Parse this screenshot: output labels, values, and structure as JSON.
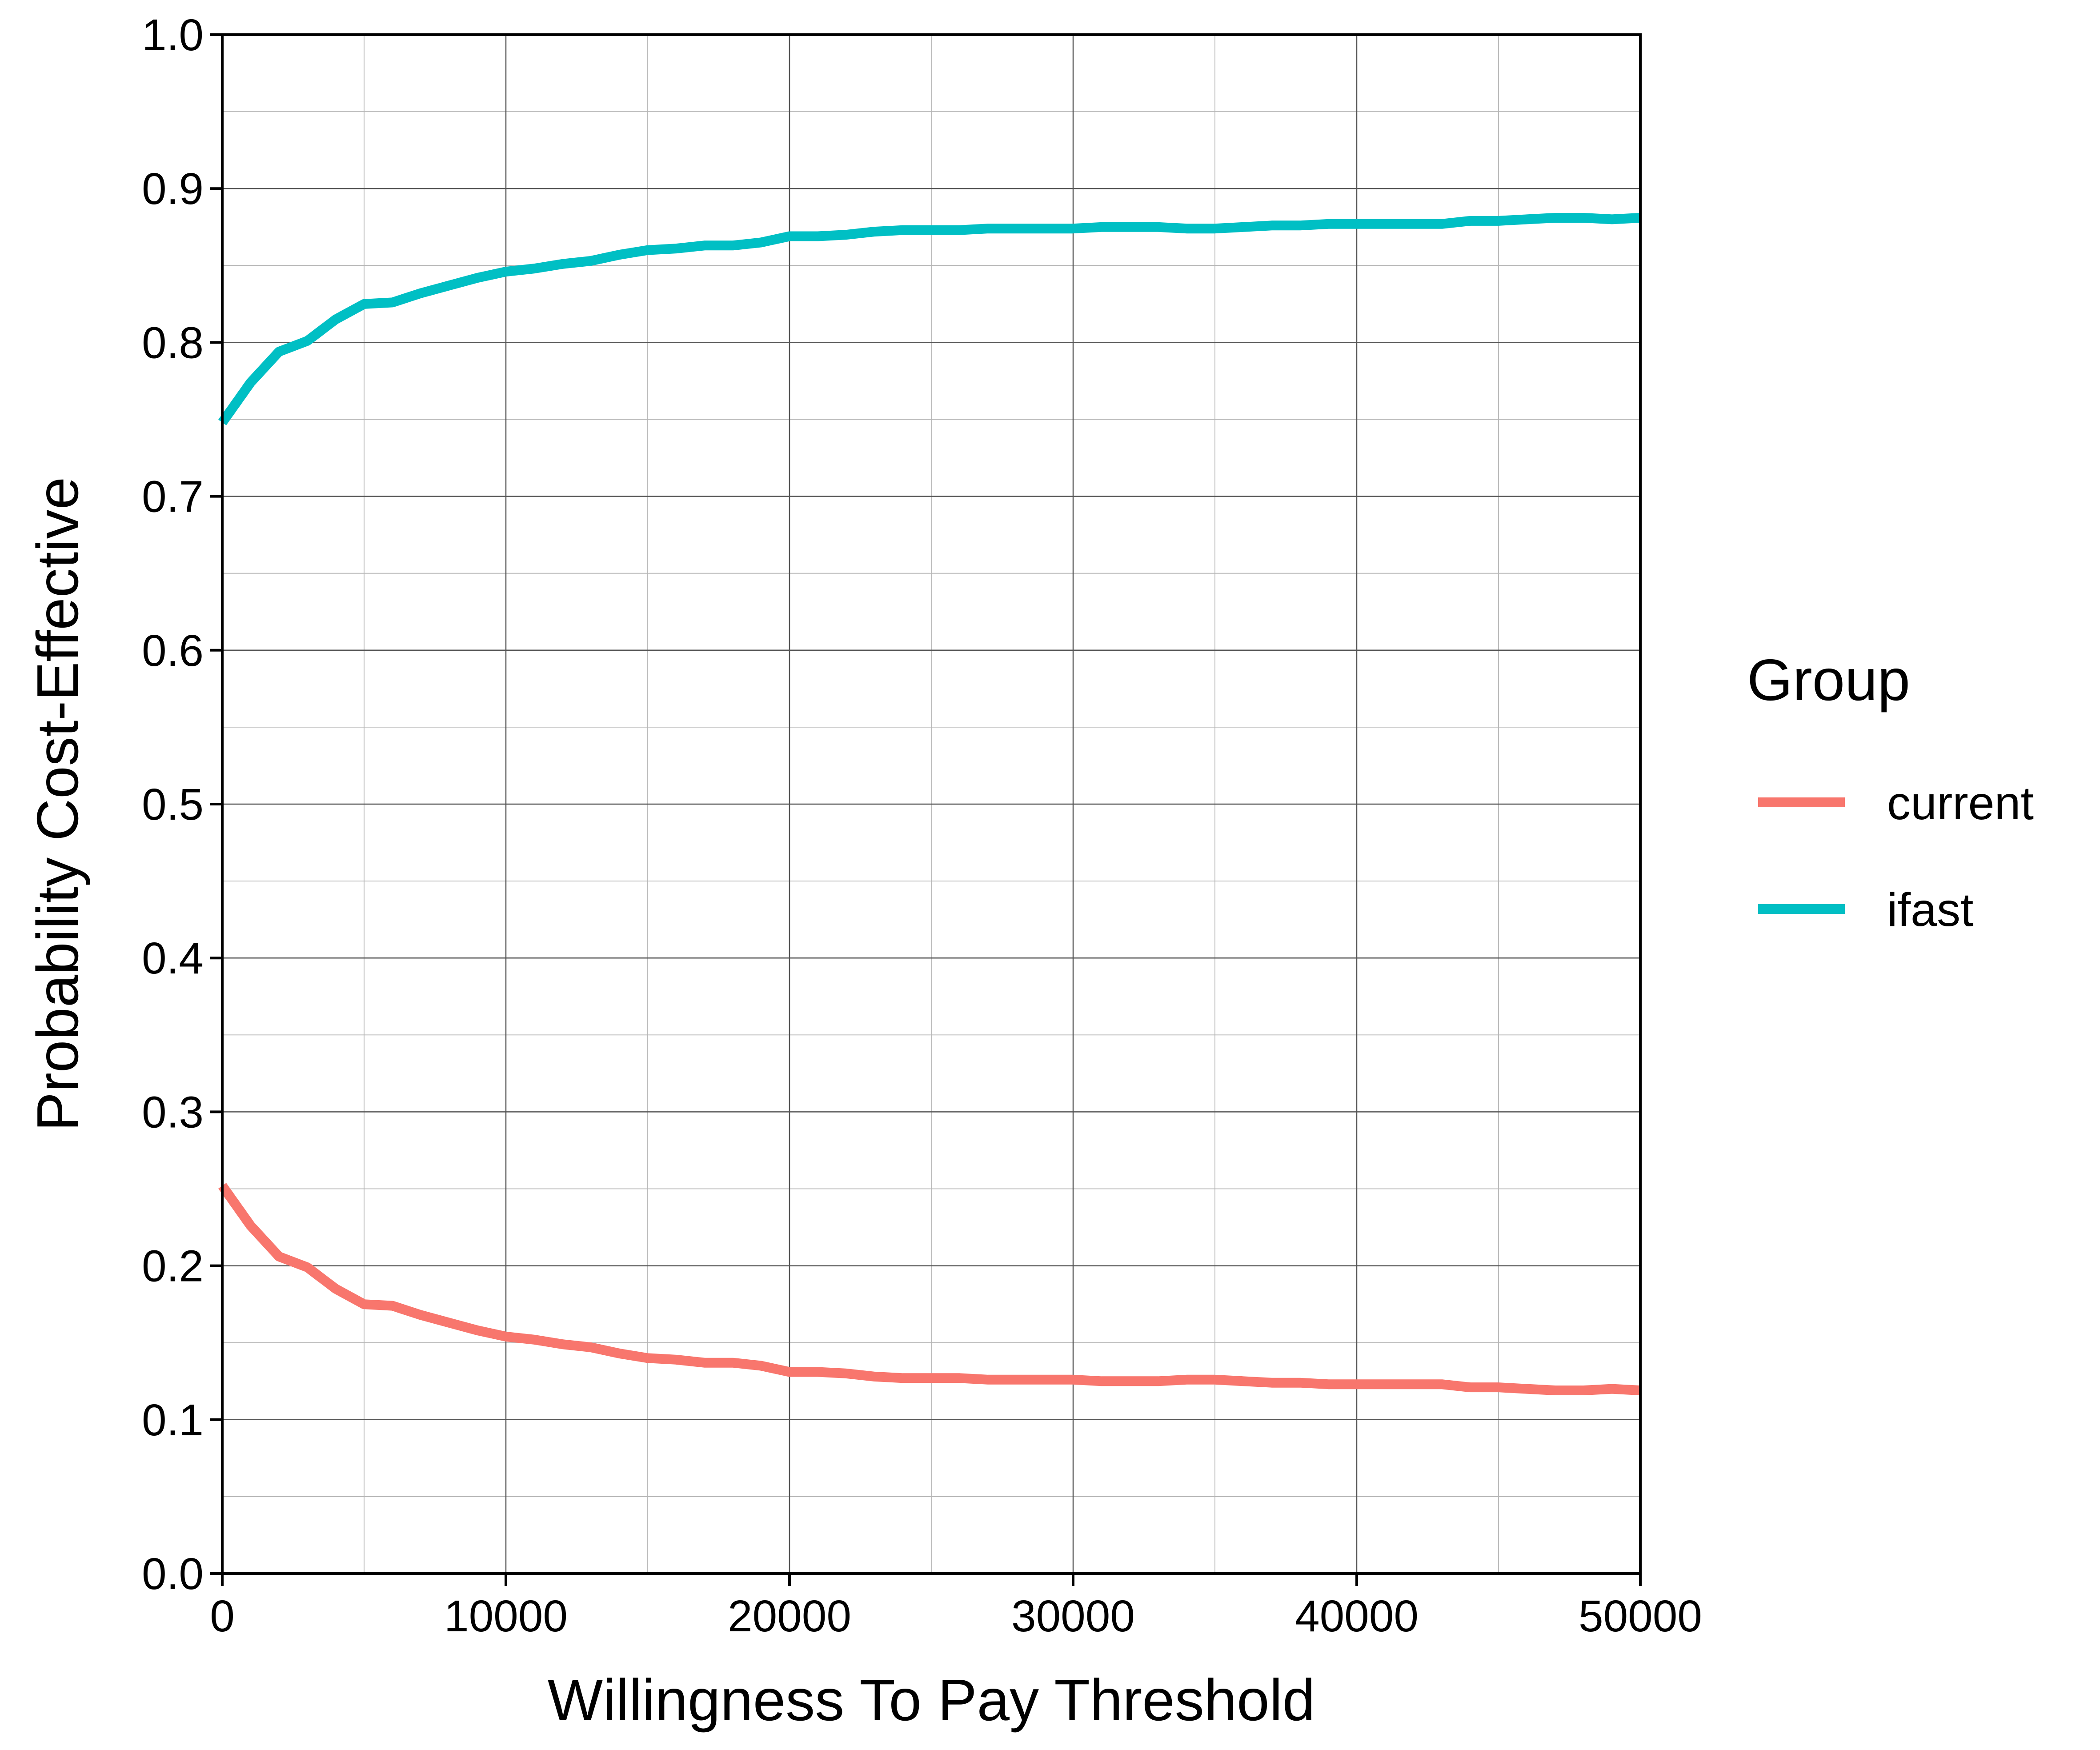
{
  "chart_data": {
    "type": "line",
    "xlabel": "Willingness To Pay Threshold",
    "ylabel": "Probability Cost-Effective",
    "xlim": [
      0,
      50000
    ],
    "ylim": [
      0,
      1
    ],
    "x_ticks": [
      "0",
      "10000",
      "20000",
      "30000",
      "40000",
      "50000"
    ],
    "y_ticks": [
      "0.0",
      "0.1",
      "0.2",
      "0.3",
      "0.4",
      "0.5",
      "0.6",
      "0.7",
      "0.8",
      "0.9",
      "1.0"
    ],
    "grid": true,
    "legend": {
      "title": "Group",
      "placement": "right"
    },
    "x": [
      0,
      1000,
      2000,
      3000,
      4000,
      5000,
      6000,
      7000,
      8000,
      9000,
      10000,
      11000,
      12000,
      13000,
      14000,
      15000,
      16000,
      17000,
      18000,
      19000,
      20000,
      21000,
      22000,
      23000,
      24000,
      25000,
      26000,
      27000,
      28000,
      29000,
      30000,
      31000,
      32000,
      33000,
      34000,
      35000,
      36000,
      37000,
      38000,
      39000,
      40000,
      41000,
      42000,
      43000,
      44000,
      45000,
      46000,
      47000,
      48000,
      49000,
      50000
    ],
    "series": [
      {
        "name": "current",
        "color": "#F8766D",
        "values": [
          0.252,
          0.226,
          0.206,
          0.199,
          0.185,
          0.175,
          0.174,
          0.168,
          0.163,
          0.158,
          0.154,
          0.152,
          0.149,
          0.147,
          0.143,
          0.14,
          0.139,
          0.137,
          0.137,
          0.135,
          0.131,
          0.131,
          0.13,
          0.128,
          0.127,
          0.127,
          0.127,
          0.126,
          0.126,
          0.126,
          0.126,
          0.125,
          0.125,
          0.125,
          0.126,
          0.126,
          0.125,
          0.124,
          0.124,
          0.123,
          0.123,
          0.123,
          0.123,
          0.123,
          0.121,
          0.121,
          0.12,
          0.119,
          0.119,
          0.12,
          0.119
        ]
      },
      {
        "name": "ifast",
        "color": "#00BFC4",
        "values": [
          0.748,
          0.774,
          0.794,
          0.801,
          0.815,
          0.825,
          0.826,
          0.832,
          0.837,
          0.842,
          0.846,
          0.848,
          0.851,
          0.853,
          0.857,
          0.86,
          0.861,
          0.863,
          0.863,
          0.865,
          0.869,
          0.869,
          0.87,
          0.872,
          0.873,
          0.873,
          0.873,
          0.874,
          0.874,
          0.874,
          0.874,
          0.875,
          0.875,
          0.875,
          0.874,
          0.874,
          0.875,
          0.876,
          0.876,
          0.877,
          0.877,
          0.877,
          0.877,
          0.877,
          0.879,
          0.879,
          0.88,
          0.881,
          0.881,
          0.88,
          0.881
        ]
      }
    ]
  }
}
